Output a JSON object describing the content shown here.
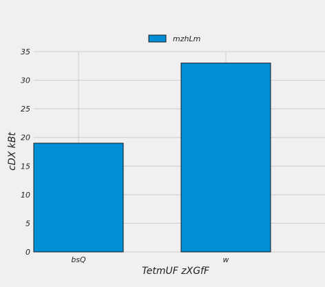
{
  "chart_data": {
    "type": "bar",
    "categories": [
      "bsQ",
      "w"
    ],
    "series": [
      {
        "name": "mzhLm",
        "values": [
          19,
          33
        ]
      }
    ],
    "title": "",
    "xlabel": "TetmUF zXGfF",
    "ylabel": "cDX kBt",
    "ylim": [
      0,
      35
    ],
    "yticks": [
      0,
      5,
      10,
      15,
      20,
      25,
      30,
      35
    ],
    "grid": true,
    "legend_position": "top-center",
    "colors": {
      "bar_fill": "#008fd5",
      "bar_edge": "#1a1a1a",
      "grid": "#cbcbcb",
      "background": "#f0f0f0"
    }
  }
}
